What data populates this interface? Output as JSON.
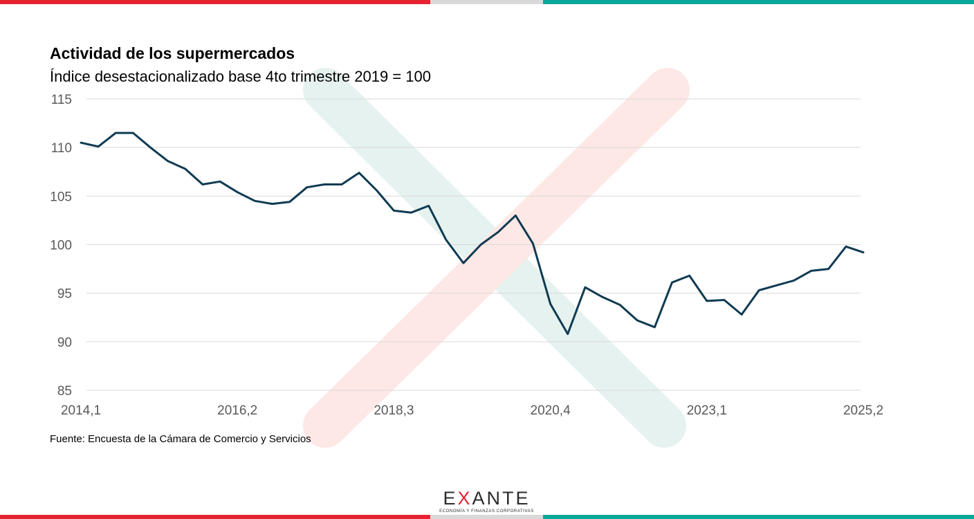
{
  "colors": {
    "brand_red": "#e52331",
    "brand_grey": "#d9d9d9",
    "brand_teal": "#0aa89a",
    "line": "#0f3a52",
    "grid": "#d9d9d9",
    "watermark_teal": "#e6f2ef",
    "watermark_red": "#fde8e6"
  },
  "header": {
    "title": "Actividad de los supermercados",
    "subtitle": "Índice desestacionalizado base 4to trimestre 2019 = 100"
  },
  "source": "Fuente: Encuesta de la Cámara de Comercio y Servicios",
  "logo": {
    "word_pre": "E",
    "word_x": "X",
    "word_post": "ANTE",
    "tagline": "ECONOMÍA Y FINANZAS CORPORATIVAS"
  },
  "chart_data": {
    "type": "line",
    "title": "Actividad de los supermercados",
    "subtitle": "Índice desestacionalizado base 4to trimestre 2019 = 100",
    "xlabel": "",
    "ylabel": "",
    "ylim": [
      85,
      115
    ],
    "yticks": [
      85,
      90,
      95,
      100,
      105,
      110,
      115
    ],
    "grid": true,
    "legend": "none",
    "x": [
      "2014,1",
      "2014,2",
      "2014,3",
      "2014,4",
      "2015,1",
      "2015,2",
      "2015,3",
      "2015,4",
      "2016,1",
      "2016,2",
      "2016,3",
      "2016,4",
      "2017,1",
      "2017,2",
      "2017,3",
      "2017,4",
      "2018,1",
      "2018,2",
      "2018,3",
      "2018,4",
      "2019,1",
      "2019,2",
      "2019,3",
      "2019,4",
      "2020,1",
      "2020,2",
      "2020,3",
      "2020,4",
      "2021,1",
      "2021,2",
      "2021,3",
      "2021,4",
      "2022,1",
      "2022,2",
      "2022,3",
      "2022,4",
      "2023,1",
      "2023,2",
      "2023,3",
      "2023,4",
      "2024,1",
      "2024,2",
      "2024,3",
      "2024,4",
      "2025,1",
      "2025,2"
    ],
    "xtick_labels": [
      "2014,1",
      "2016,2",
      "2018,3",
      "2020,4",
      "2023,1",
      "2025,2"
    ],
    "series": [
      {
        "values": [
          110.5,
          110.1,
          111.5,
          111.5,
          110.0,
          108.6,
          107.8,
          106.2,
          106.5,
          105.4,
          104.5,
          104.2,
          104.4,
          105.9,
          106.2,
          106.2,
          107.4,
          105.6,
          103.5,
          103.3,
          104.0,
          100.5,
          98.1,
          100.0,
          101.3,
          103.0,
          100.1,
          93.9,
          90.8,
          95.6,
          94.6,
          93.8,
          92.2,
          91.5,
          96.1,
          96.8,
          94.2,
          94.3,
          92.8,
          95.3,
          95.8,
          96.3,
          97.3,
          97.5,
          99.8,
          99.2
        ]
      }
    ]
  }
}
